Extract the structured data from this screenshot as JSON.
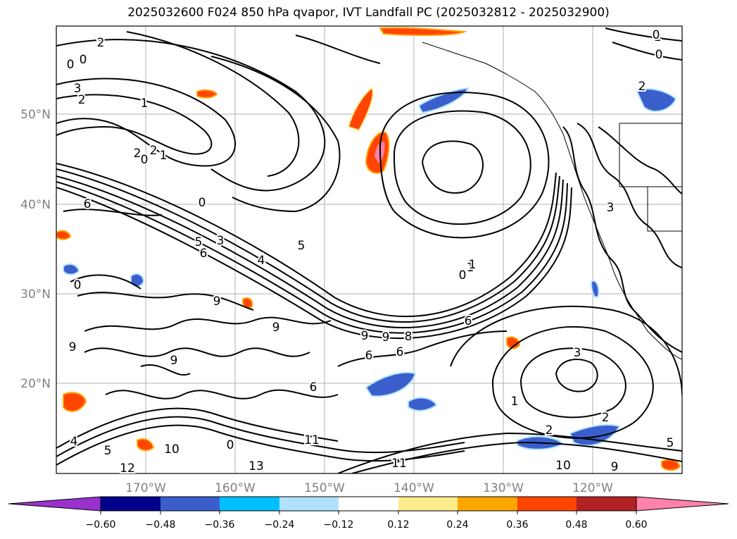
{
  "title": "2025032600 F024 850 hPa qvapor, IVT Landfall PC (2025032812 - 2025032900)",
  "lat_labels": [
    "50°N",
    "40°N",
    "30°N",
    "20°N"
  ],
  "lon_labels": [
    "170°W",
    "160°W",
    "150°W",
    "140°W",
    "130°W",
    "120°W"
  ],
  "colorbar": {
    "colors": [
      "#9932cc",
      "#00008b",
      "#3a5fcd",
      "#00bfff",
      "#b0e2ff",
      "#ffffff",
      "#ffec8b",
      "#ffa500",
      "#ff4500",
      "#b22222",
      "#ff82ab"
    ],
    "tick_labels": [
      "−0.60",
      "−0.48",
      "−0.36",
      "−0.24",
      "−0.12",
      "0.12",
      "0.24",
      "0.36",
      "0.48",
      "0.60"
    ]
  },
  "contour_labels": [
    "2",
    "0",
    "0",
    "3",
    "2",
    "1",
    "2",
    "0",
    "1",
    "6",
    "0",
    "5",
    "3",
    "6",
    "4",
    "0",
    "5",
    "9",
    "0",
    "1",
    "9",
    "9",
    "9",
    "6",
    "8",
    "9",
    "9",
    "6",
    "6",
    "6",
    "2",
    "1",
    "3",
    "2",
    "1",
    "0",
    "2",
    "4",
    "5",
    "11",
    "10",
    "0",
    "13",
    "12",
    "11",
    "10",
    "9",
    "5",
    "3",
    "1",
    "2",
    "0",
    "3"
  ]
}
